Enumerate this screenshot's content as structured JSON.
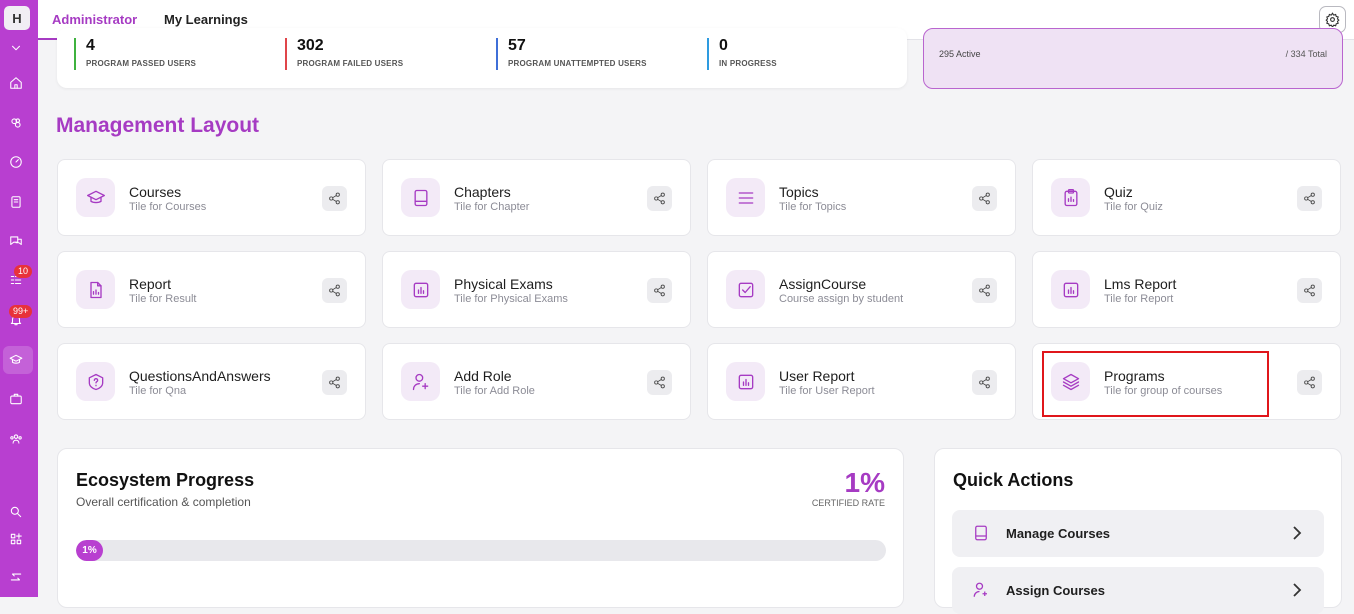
{
  "sidebar": {
    "logo": "H",
    "badge_tasks": "10",
    "badge_notifications": "99+"
  },
  "tabs": {
    "administrator": "Administrator",
    "my_learnings": "My Learnings"
  },
  "stats": [
    {
      "value": "4",
      "label": "PROGRAM PASSED USERS",
      "color": "#3fb23f"
    },
    {
      "value": "302",
      "label": "PROGRAM FAILED USERS",
      "color": "#e0454a"
    },
    {
      "value": "57",
      "label": "PROGRAM UNATTEMPTED USERS",
      "color": "#3f6fd8"
    },
    {
      "value": "0",
      "label": "IN PROGRESS",
      "color": "#2e9be0"
    }
  ],
  "active_card": {
    "active": "295 Active",
    "total": "/ 334 Total"
  },
  "section_title": "Management Layout",
  "tiles": [
    {
      "title": "Courses",
      "subtitle": "Tile for Courses",
      "icon": "graduation-cap-icon"
    },
    {
      "title": "Chapters",
      "subtitle": "Tile for Chapter",
      "icon": "book-icon"
    },
    {
      "title": "Topics",
      "subtitle": "Tile for Topics",
      "icon": "list-icon"
    },
    {
      "title": "Quiz",
      "subtitle": "Tile for Quiz",
      "icon": "clipboard-icon"
    },
    {
      "title": "Report",
      "subtitle": "Tile for Result",
      "icon": "file-chart-icon"
    },
    {
      "title": "Physical Exams",
      "subtitle": "Tile for Physical Exams",
      "icon": "chart-square-icon"
    },
    {
      "title": "AssignCourse",
      "subtitle": "Course assign by student",
      "icon": "checkbox-icon"
    },
    {
      "title": "Lms Report",
      "subtitle": "Tile for Report",
      "icon": "chart-square-icon"
    },
    {
      "title": "QuestionsAndAnswers",
      "subtitle": "Tile for Qna",
      "icon": "question-shield-icon"
    },
    {
      "title": "Add Role",
      "subtitle": "Tile for Add Role",
      "icon": "user-plus-icon"
    },
    {
      "title": "User Report",
      "subtitle": "Tile for User Report",
      "icon": "chart-square-icon"
    },
    {
      "title": "Programs",
      "subtitle": "Tile for group of courses",
      "icon": "layers-icon"
    }
  ],
  "ecosystem": {
    "title": "Ecosystem Progress",
    "subtitle": "Overall certification & completion",
    "rate": "1%",
    "rate_label": "CERTIFIED RATE",
    "progress_label": "1%",
    "progress": 1
  },
  "quick_actions": {
    "title": "Quick Actions",
    "items": [
      "Manage Courses",
      "Assign Courses"
    ]
  }
}
